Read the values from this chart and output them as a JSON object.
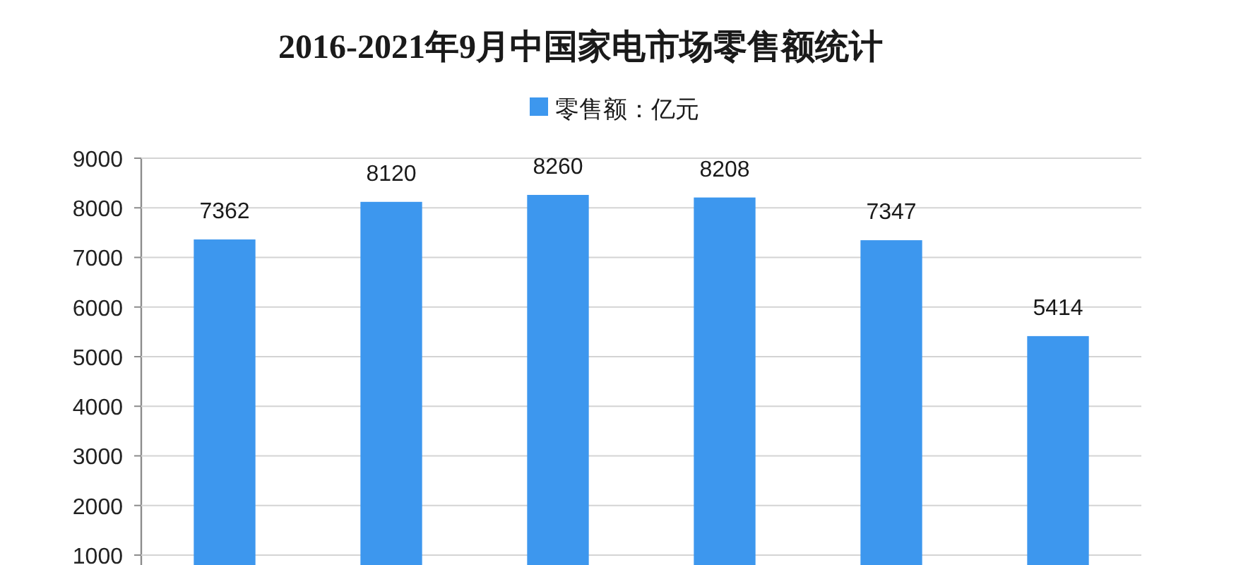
{
  "chart_data": {
    "type": "bar",
    "title": "2016-2021年9月中国家电市场零售额统计",
    "categories": [
      null,
      null,
      null,
      null,
      null,
      null
    ],
    "series": [
      {
        "name": "零售额：亿元",
        "color": "#3d97ee",
        "values": [
          7362,
          8120,
          8260,
          8208,
          7347,
          5414
        ]
      }
    ],
    "ylim": [
      800,
      9000
    ],
    "yticks": [
      1000,
      2000,
      3000,
      4000,
      5000,
      6000,
      7000,
      8000,
      9000
    ],
    "grid": "y",
    "legend": "top",
    "data_labels": true
  }
}
